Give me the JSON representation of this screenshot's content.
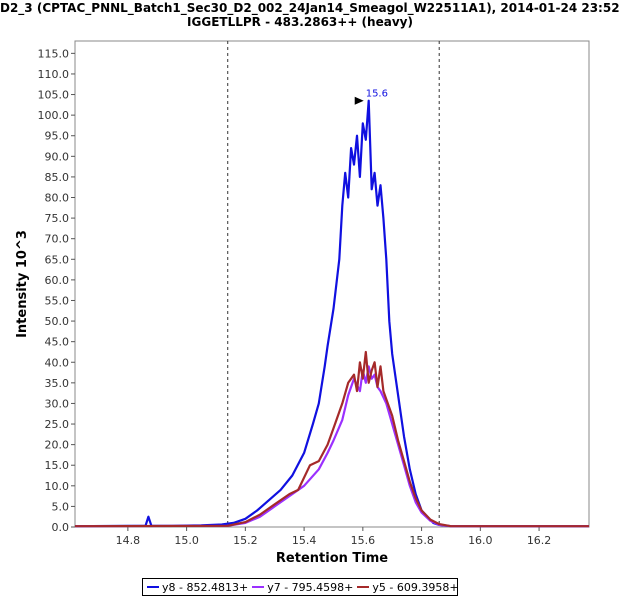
{
  "header": {
    "title_line1": "D2_3 (CPTAC_PNNL_Batch1_Sec30_D2_002_24Jan14_Smeagol_W22511A1), 2014-01-24 23:52",
    "title_line2": "IGGETLLPR - 483.2863++ (heavy)"
  },
  "legend": {
    "items": [
      {
        "label": "y8 - 852.4813+",
        "color": "#1010e0"
      },
      {
        "label": "y7 - 795.4598+",
        "color": "#9b30ff"
      },
      {
        "label": "y5 - 609.3958+",
        "color": "#a52a2a"
      }
    ]
  },
  "chart_data": {
    "type": "line",
    "title": "D2_3 (CPTAC_PNNL_Batch1_Sec30_D2_002_24Jan14_Smeagol_W22511A1), 2014-01-24 23:52",
    "subtitle": "IGGETLLPR - 483.2863++ (heavy)",
    "xlabel": "Retention Time",
    "ylabel": "Intensity 10^3",
    "xlim": [
      14.62,
      16.37
    ],
    "ylim": [
      0,
      118
    ],
    "xticks": [
      "14.8",
      "15.0",
      "15.2",
      "15.4",
      "15.6",
      "15.8",
      "16.0",
      "16.2"
    ],
    "xtick_values": [
      14.8,
      15.0,
      15.2,
      15.4,
      15.6,
      15.8,
      16.0,
      16.2
    ],
    "yticks": [
      "0.0",
      "5.0",
      "10.0",
      "15.0",
      "20.0",
      "25.0",
      "30.0",
      "35.0",
      "40.0",
      "45.0",
      "50.0",
      "55.0",
      "60.0",
      "65.0",
      "70.0",
      "75.0",
      "80.0",
      "85.0",
      "90.0",
      "95.0",
      "100.0",
      "105.0",
      "110.0",
      "115.0"
    ],
    "ytick_values": [
      0,
      5,
      10,
      15,
      20,
      25,
      30,
      35,
      40,
      45,
      50,
      55,
      60,
      65,
      70,
      75,
      80,
      85,
      90,
      95,
      100,
      105,
      110,
      115
    ],
    "integration_bounds": [
      15.14,
      15.86
    ],
    "peak_annotation": {
      "label": "15.6",
      "x": 15.62,
      "y": 103.5
    },
    "series": [
      {
        "name": "y8 - 852.4813+",
        "color": "#1010e0",
        "x": [
          14.62,
          14.8,
          14.86,
          14.87,
          14.88,
          14.95,
          15.05,
          15.12,
          15.16,
          15.2,
          15.24,
          15.28,
          15.32,
          15.36,
          15.4,
          15.43,
          15.45,
          15.47,
          15.48,
          15.5,
          15.52,
          15.53,
          15.54,
          15.55,
          15.56,
          15.57,
          15.58,
          15.59,
          15.6,
          15.61,
          15.62,
          15.63,
          15.64,
          15.65,
          15.66,
          15.67,
          15.68,
          15.69,
          15.7,
          15.72,
          15.74,
          15.76,
          15.78,
          15.8,
          15.82,
          15.84,
          15.86,
          15.9,
          16.0,
          16.37
        ],
        "y": [
          0.2,
          0.3,
          0.3,
          2.5,
          0.3,
          0.3,
          0.4,
          0.6,
          1.0,
          2.0,
          4.0,
          6.5,
          9.0,
          12.5,
          18.0,
          25.0,
          30.0,
          39.0,
          44.0,
          53.0,
          65.0,
          78.0,
          86.0,
          80.0,
          92.0,
          88.0,
          95.0,
          85.0,
          98.0,
          94.0,
          103.5,
          82.0,
          86.0,
          78.0,
          83.0,
          75.0,
          65.0,
          50.0,
          42.0,
          32.0,
          22.0,
          14.0,
          8.0,
          4.0,
          2.5,
          1.0,
          0.5,
          0.2,
          0.2,
          0.2
        ]
      },
      {
        "name": "y7 - 795.4598+",
        "color": "#9b30ff",
        "x": [
          14.62,
          15.14,
          15.2,
          15.25,
          15.3,
          15.35,
          15.4,
          15.45,
          15.48,
          15.5,
          15.53,
          15.55,
          15.57,
          15.59,
          15.6,
          15.61,
          15.62,
          15.63,
          15.64,
          15.65,
          15.66,
          15.68,
          15.7,
          15.72,
          15.74,
          15.76,
          15.78,
          15.8,
          15.83,
          15.86,
          15.9,
          16.37
        ],
        "y": [
          0.2,
          0.3,
          1.0,
          2.5,
          5.0,
          7.5,
          10.0,
          14.0,
          18.0,
          21.0,
          26.0,
          32.0,
          36.0,
          33.0,
          38.0,
          35.0,
          39.0,
          36.0,
          37.0,
          34.0,
          33.0,
          30.0,
          25.0,
          20.0,
          15.0,
          10.0,
          6.0,
          3.5,
          1.5,
          0.5,
          0.2,
          0.2
        ]
      },
      {
        "name": "y5 - 609.3958+",
        "color": "#a52a2a",
        "x": [
          14.62,
          15.14,
          15.2,
          15.25,
          15.3,
          15.35,
          15.38,
          15.42,
          15.45,
          15.48,
          15.5,
          15.53,
          15.55,
          15.57,
          15.58,
          15.59,
          15.6,
          15.61,
          15.62,
          15.63,
          15.64,
          15.65,
          15.66,
          15.67,
          15.68,
          15.7,
          15.72,
          15.74,
          15.76,
          15.78,
          15.8,
          15.83,
          15.86,
          15.9,
          16.37
        ],
        "y": [
          0.2,
          0.3,
          1.2,
          3.0,
          5.5,
          8.0,
          9.0,
          15.0,
          16.0,
          20.0,
          24.0,
          30.0,
          35.0,
          37.0,
          33.0,
          40.0,
          36.0,
          42.5,
          35.0,
          38.0,
          40.0,
          34.0,
          39.0,
          33.0,
          31.0,
          27.0,
          21.0,
          16.0,
          11.0,
          7.0,
          4.0,
          1.8,
          0.7,
          0.2,
          0.2
        ]
      }
    ]
  }
}
